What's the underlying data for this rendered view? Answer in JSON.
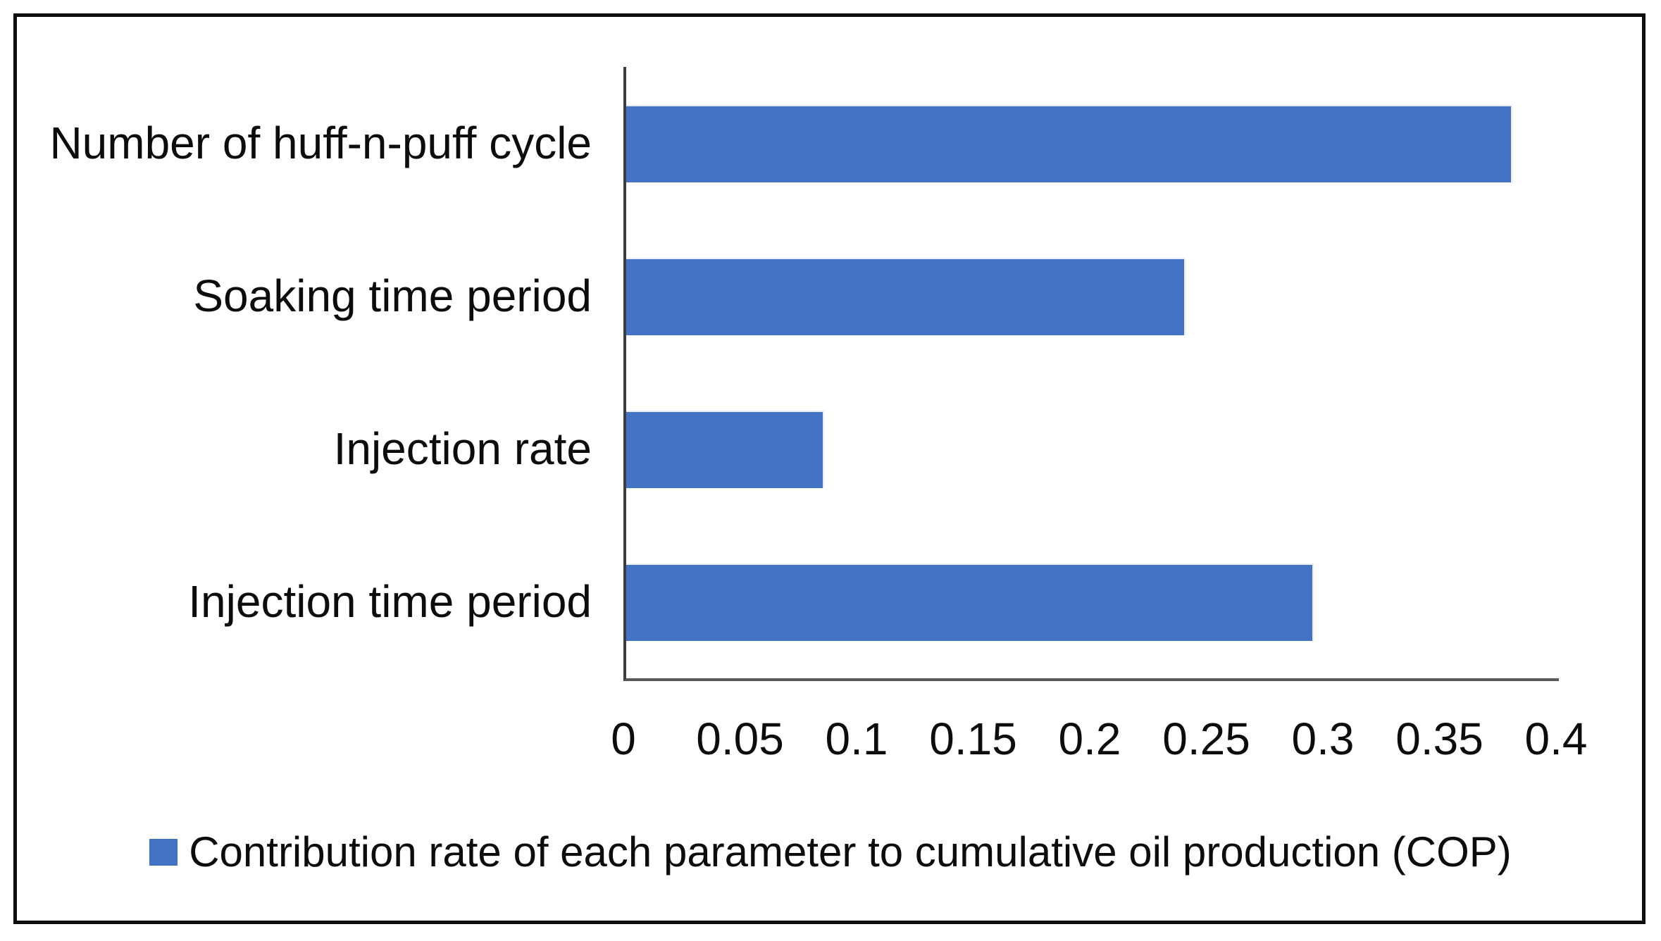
{
  "chart_data": {
    "type": "bar",
    "orientation": "horizontal",
    "title": "",
    "categories": [
      "Number of huff-n-puff cycle",
      "Soaking time period",
      "Injection rate",
      "Injection time period"
    ],
    "values": [
      0.38,
      0.24,
      0.085,
      0.295
    ],
    "xlabel": "",
    "ylabel": "",
    "xlim": [
      0,
      0.4
    ],
    "xticks": [
      0,
      0.05,
      0.1,
      0.15,
      0.2,
      0.25,
      0.3,
      0.35,
      0.4
    ],
    "xtick_labels": [
      "0",
      "0.05",
      "0.1",
      "0.15",
      "0.2",
      "0.25",
      "0.3",
      "0.35",
      "0.4"
    ],
    "grid": false,
    "legend_position": "bottom",
    "legend": [
      "Contribution rate of each parameter to cumulative oil production (COP)"
    ],
    "bar_color": "#4472C4"
  },
  "colors": {
    "bar": "#4472C4",
    "y_axis": "#3d3d3d",
    "x_axis": "#595959",
    "frame_border": "#0f0f0f",
    "text": "#0c0c0c",
    "background": "#ffffff"
  }
}
